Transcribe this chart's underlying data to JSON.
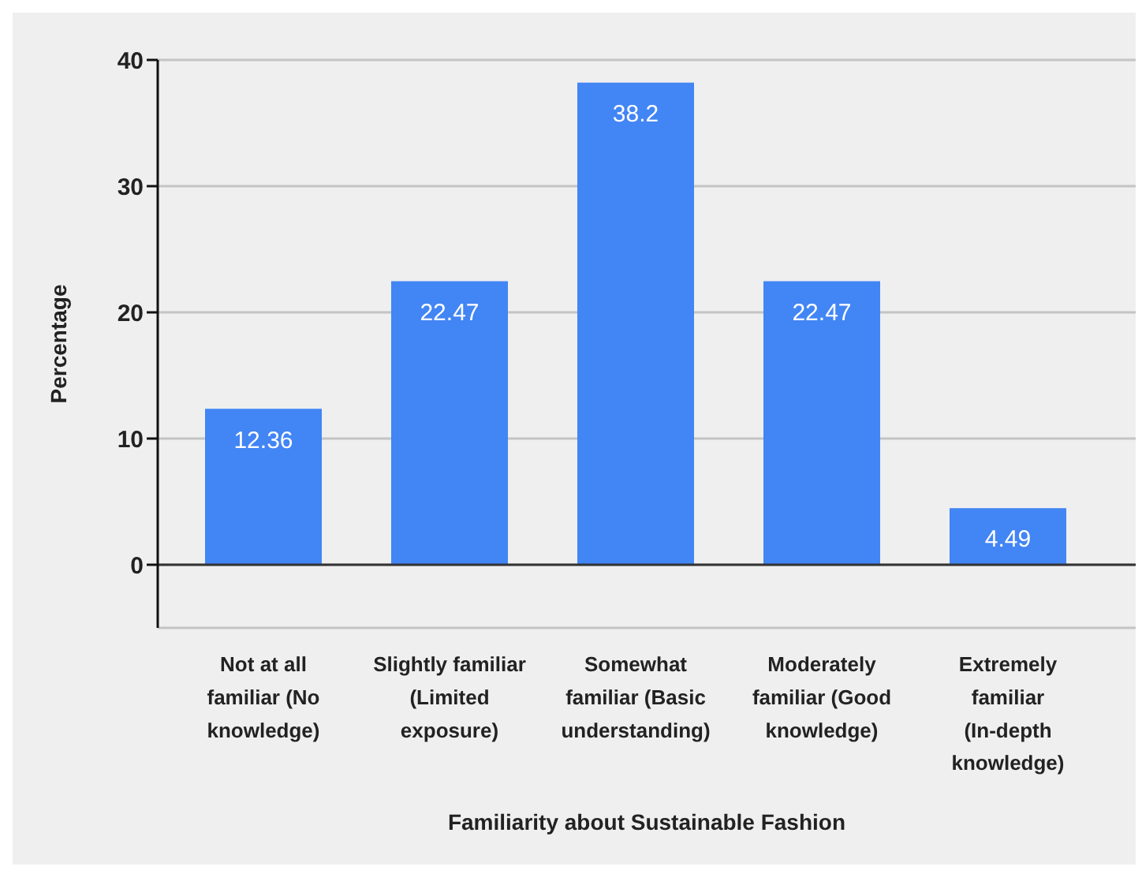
{
  "chart_data": {
    "type": "bar",
    "xlabel": "Familiarity about Sustainable Fashion",
    "ylabel": "Percentage",
    "categories": [
      "Not at all familiar (No knowledge)",
      "Slightly familiar (Limited exposure)",
      "Somewhat familiar (Basic understanding)",
      "Moderately familiar (Good knowledge)",
      "Extremely familiar (In-depth knowledge)"
    ],
    "values": [
      12.36,
      22.47,
      38.2,
      22.47,
      4.49
    ],
    "color": "#4285f4",
    "ylim": [
      -5,
      40
    ],
    "yticks": [
      0,
      10,
      20,
      30,
      40
    ],
    "grid": "y",
    "data_labels": true
  }
}
